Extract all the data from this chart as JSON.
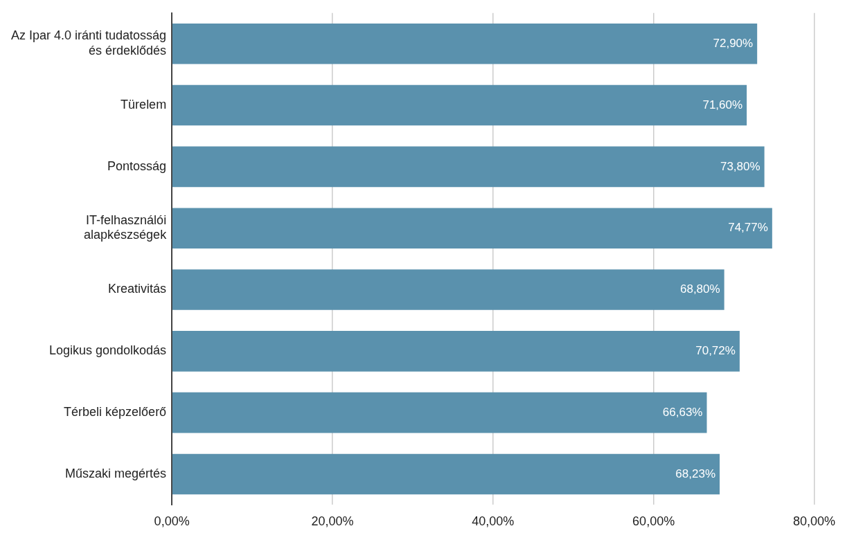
{
  "chart_data": {
    "type": "bar",
    "orientation": "horizontal",
    "categories": [
      "Az Ipar 4.0 iránti tudatosság\nés érdeklődés",
      "Türelem",
      "Pontosság",
      "IT-felhasználói\nalapkészségek",
      "Kreativitás",
      "Logikus gondolkodás",
      "Térbeli képzelőerő",
      "Műszaki megértés"
    ],
    "values": [
      72.9,
      71.6,
      73.8,
      74.77,
      68.8,
      70.72,
      66.63,
      68.23
    ],
    "value_labels": [
      "72,90%",
      "71,60%",
      "73,80%",
      "74,77%",
      "68,80%",
      "70,72%",
      "66,63%",
      "68,23%"
    ],
    "color": "#5a91ad",
    "xlim": [
      0,
      80
    ],
    "xticks": [
      {
        "value": 0,
        "label": "0,00%"
      },
      {
        "value": 20,
        "label": "20,00%"
      },
      {
        "value": 40,
        "label": "40,00%"
      },
      {
        "value": 60,
        "label": "60,00%"
      },
      {
        "value": 80,
        "label": "80,00%"
      }
    ],
    "grid": "x"
  }
}
